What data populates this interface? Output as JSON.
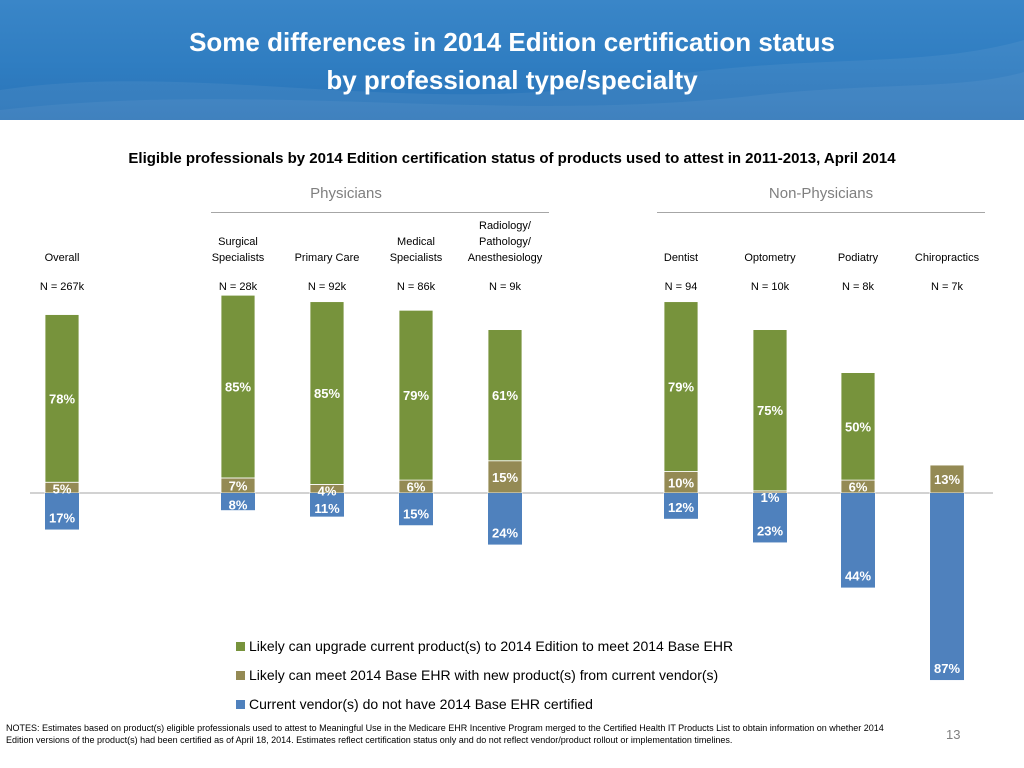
{
  "slide": {
    "title_line1": "Some differences in 2014 Edition certification status",
    "title_line2": "by professional type/specialty",
    "page_number": "13",
    "notes": "NOTES: Estimates based on product(s) eligible professionals used to attest to Meaningful Use in the Medicare EHR Incentive Program  merged to the Certified Health IT Products List to obtain information on whether 2014 Edition versions of the product(s) had been certified as of April 18, 2014. Estimates reflect certification status only and do not reflect vendor/product rollout or implementation timelines."
  },
  "colors": {
    "green": "#77933c",
    "brown": "#948a54",
    "blue": "#4f81bd",
    "header_blue": "#2f7dc1"
  },
  "chart_data": {
    "type": "bar",
    "title": "Eligible professionals by 2014 Edition certification status of products used to attest in 2011-2013, April 2014",
    "groups": [
      {
        "label": "Physicians"
      },
      {
        "label": "Non-Physicians"
      }
    ],
    "categories": [
      {
        "label": [
          "Overall"
        ],
        "n": "N = 267k"
      },
      {
        "label": [
          "Surgical",
          "Specialists"
        ],
        "n": "N = 28k"
      },
      {
        "label": [
          "Primary Care"
        ],
        "n": "N = 92k"
      },
      {
        "label": [
          "Medical",
          "Specialists"
        ],
        "n": "N = 86k"
      },
      {
        "label": [
          "Radiology/",
          "Pathology/",
          "Anesthesiology"
        ],
        "n": "N = 9k"
      },
      {
        "label": [
          "Dentist"
        ],
        "n": "N = 94"
      },
      {
        "label": [
          "Optometry"
        ],
        "n": "N = 10k"
      },
      {
        "label": [
          "Podiatry"
        ],
        "n": "N = 8k"
      },
      {
        "label": [
          "Chiropractics"
        ],
        "n": "N = 7k"
      }
    ],
    "series": [
      {
        "name": "Likely can upgrade current product(s) to 2014 Edition to meet 2014 Base EHR",
        "color": "#77933c",
        "values": [
          78,
          85,
          85,
          79,
          61,
          79,
          75,
          50,
          0
        ],
        "labels": [
          "78%",
          "85%",
          "85%",
          "79%",
          "61%",
          "79%",
          "75%",
          "50%",
          ""
        ]
      },
      {
        "name": "Likely can meet 2014 Base EHR with new product(s) from current vendor(s)",
        "color": "#948a54",
        "values": [
          5,
          7,
          4,
          6,
          15,
          10,
          1,
          6,
          13
        ],
        "labels": [
          "5%",
          "7%",
          "4%",
          "6%",
          "15%",
          "10%",
          "1%",
          "6%",
          "13%"
        ]
      },
      {
        "name": "Current vendor(s) do not have 2014 Base EHR certified",
        "color": "#4f81bd",
        "values": [
          17,
          8,
          11,
          15,
          24,
          12,
          23,
          44,
          87
        ],
        "labels": [
          "17%",
          "8%",
          "11%",
          "15%",
          "24%",
          "12%",
          "23%",
          "44%",
          "87%"
        ]
      }
    ],
    "note": "Green and brown stacked above baseline; blue shown below baseline"
  }
}
